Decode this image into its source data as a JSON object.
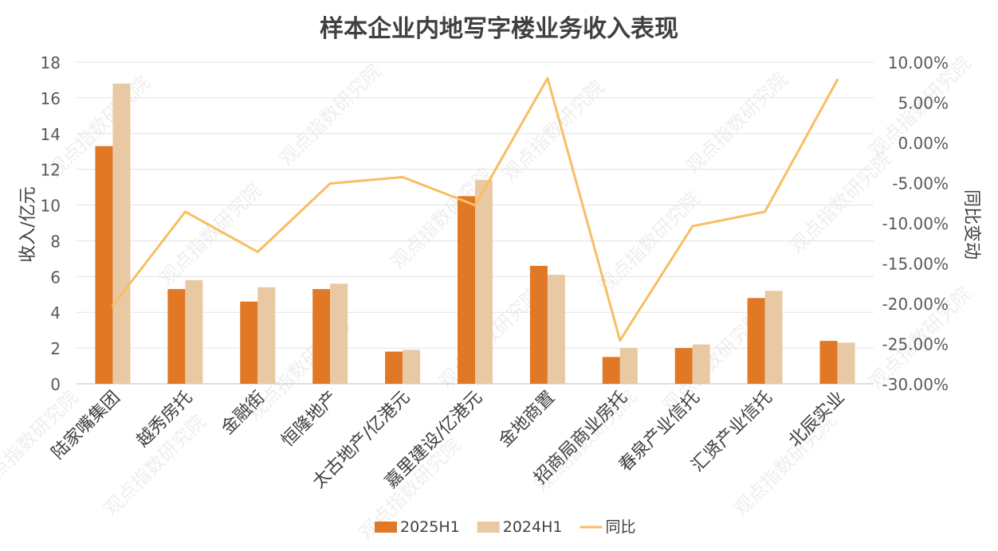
{
  "chart_data": {
    "type": "bar",
    "title": "样本企业内地写字楼业务收入表现",
    "ylabel": "收入/亿元",
    "y2label": "同比变动",
    "ylim": [
      0,
      18
    ],
    "yticks": [
      "0",
      "2",
      "4",
      "6",
      "8",
      "10",
      "12",
      "14",
      "16",
      "18"
    ],
    "y2lim": [
      -30,
      10
    ],
    "y2ticks": [
      "-30.00%",
      "-25.00%",
      "-20.00%",
      "-15.00%",
      "-10.00%",
      "-5.00%",
      "0.00%",
      "5.00%",
      "10.00%"
    ],
    "grid": true,
    "legend_position": "bottom",
    "categories": [
      "陆家嘴集团",
      "越秀房托",
      "金融街",
      "恒隆地产",
      "太古地产/亿港元",
      "嘉里建设/亿港元",
      "金地商置",
      "招商局商业房托",
      "春泉产业信托",
      "汇贤产业信托",
      "北辰实业"
    ],
    "series": [
      {
        "name": "2025H1",
        "type": "bar",
        "axis": "left",
        "color": "#E07826",
        "values": [
          13.3,
          5.3,
          4.6,
          5.3,
          1.8,
          10.5,
          6.6,
          1.5,
          2.0,
          4.8,
          2.4
        ]
      },
      {
        "name": "2024H1",
        "type": "bar",
        "axis": "left",
        "color": "#E8C9A3",
        "values": [
          16.8,
          5.8,
          5.4,
          5.6,
          1.9,
          11.4,
          6.1,
          2.0,
          2.2,
          5.2,
          2.3
        ]
      },
      {
        "name": "同比",
        "type": "line",
        "axis": "right",
        "color": "#F8BE62",
        "values": [
          -20.3,
          -8.6,
          -13.6,
          -5.1,
          -4.3,
          -7.8,
          8.0,
          -24.6,
          -10.4,
          -8.6,
          7.8
        ]
      }
    ],
    "watermark": "观点指数研究院"
  }
}
